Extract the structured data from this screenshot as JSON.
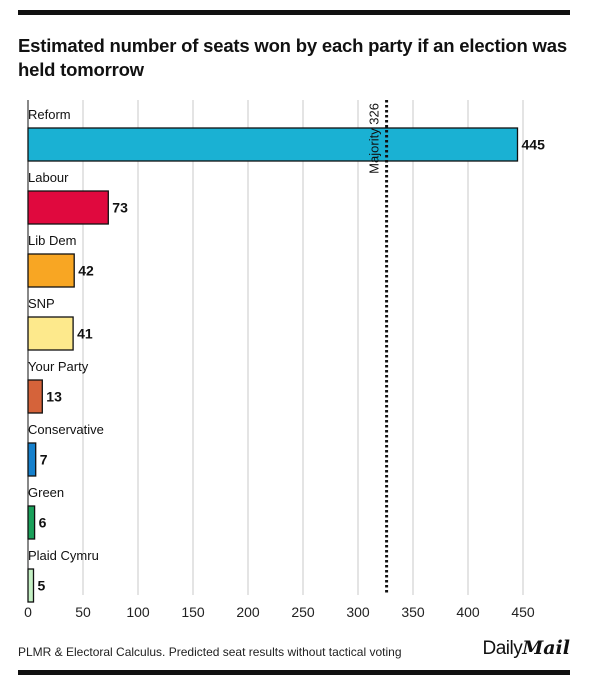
{
  "chart_data": {
    "type": "bar",
    "orientation": "horizontal",
    "title": "Estimated number of seats won by each party if an election was held tomorrow",
    "categories": [
      "Reform",
      "Labour",
      "Lib Dem",
      "SNP",
      "Your Party",
      "Conservative",
      "Green",
      "Plaid Cymru"
    ],
    "values": [
      445,
      73,
      42,
      41,
      13,
      7,
      6,
      5
    ],
    "colors": [
      "#1ab1d3",
      "#e0093e",
      "#f8a623",
      "#fde98c",
      "#d5633a",
      "#1580cc",
      "#1aa05a",
      "#c4f0c4"
    ],
    "xticks": [
      0,
      50,
      100,
      150,
      200,
      250,
      300,
      350,
      400,
      450
    ],
    "xlim": [
      0,
      460
    ],
    "grid": true,
    "reference_line": {
      "label": "Majority 326",
      "value": 326
    }
  },
  "footer": {
    "source": "PLMR & Electoral Calculus. Predicted seat results without tactical voting",
    "logo_first": "Daily",
    "logo_second": "Mail"
  }
}
